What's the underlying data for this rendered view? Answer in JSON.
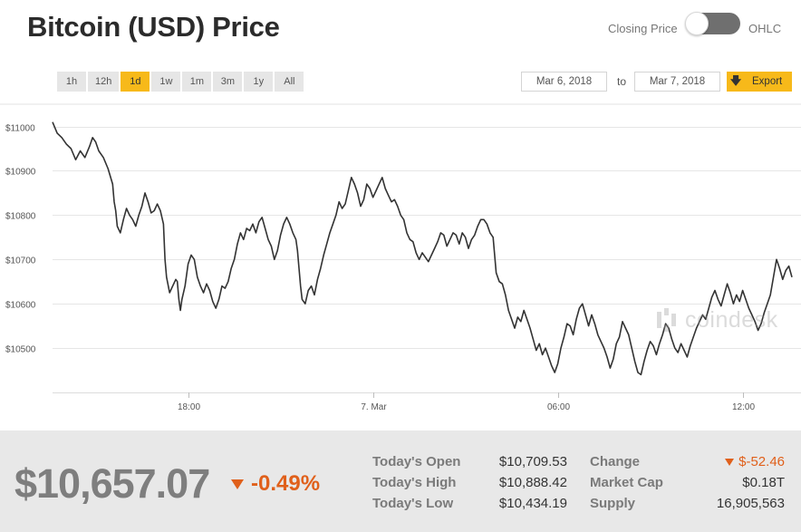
{
  "header": {
    "title": "Bitcoin (USD) Price",
    "toggle_left": "Closing Price",
    "toggle_right": "OHLC"
  },
  "controls": {
    "ranges": [
      "1h",
      "12h",
      "1d",
      "1w",
      "1m",
      "3m",
      "1y",
      "All"
    ],
    "active_range": "1d",
    "date_from": "Mar 6, 2018",
    "date_separator": "to",
    "date_to": "Mar 7, 2018",
    "export_label": "Export",
    "accent_color": "#f7b91a"
  },
  "watermark": "coindesk",
  "summary": {
    "price": "$10,657.07",
    "change_pct": "-0.49%",
    "change_color": "#e0601b",
    "stats_left": [
      {
        "label": "Today's Open",
        "value": "$10,709.53"
      },
      {
        "label": "Today's High",
        "value": "$10,888.42"
      },
      {
        "label": "Today's Low",
        "value": "$10,434.19"
      }
    ],
    "stats_right": [
      {
        "label": "Change",
        "value": "$-52.46"
      },
      {
        "label": "Market Cap",
        "value": "$0.18T"
      },
      {
        "label": "Supply",
        "value": "16,905,563"
      }
    ]
  },
  "chart_data": {
    "type": "line",
    "title": "",
    "xlabel": "",
    "ylabel": "",
    "y_ticks": [
      10500,
      10600,
      10700,
      10800,
      10900,
      11000
    ],
    "y_tick_labels": [
      "$10500",
      "$10600",
      "$10700",
      "$10800",
      "$10900",
      "$11000"
    ],
    "x_tick_labels": [
      {
        "label": "18:00",
        "hour": 4.4
      },
      {
        "label": "7. Mar",
        "hour": 10.4
      },
      {
        "label": "06:00",
        "hour": 16.4
      },
      {
        "label": "12:00",
        "hour": 22.4
      }
    ],
    "x_range": [
      0,
      24
    ],
    "ylim": [
      10400,
      11040
    ],
    "grid": true,
    "line_color": "#333333",
    "series": [
      {
        "values": [
          [
            0.0,
            11010
          ],
          [
            0.15,
            10985
          ],
          [
            0.3,
            10975
          ],
          [
            0.45,
            10960
          ],
          [
            0.6,
            10950
          ],
          [
            0.75,
            10925
          ],
          [
            0.9,
            10945
          ],
          [
            1.05,
            10930
          ],
          [
            1.2,
            10955
          ],
          [
            1.3,
            10975
          ],
          [
            1.4,
            10965
          ],
          [
            1.5,
            10945
          ],
          [
            1.65,
            10930
          ],
          [
            1.8,
            10905
          ],
          [
            1.95,
            10870
          ],
          [
            2.0,
            10830
          ],
          [
            2.05,
            10810
          ],
          [
            2.1,
            10775
          ],
          [
            2.2,
            10760
          ],
          [
            2.3,
            10790
          ],
          [
            2.4,
            10815
          ],
          [
            2.5,
            10800
          ],
          [
            2.6,
            10790
          ],
          [
            2.7,
            10775
          ],
          [
            2.8,
            10800
          ],
          [
            2.9,
            10820
          ],
          [
            3.0,
            10850
          ],
          [
            3.1,
            10830
          ],
          [
            3.2,
            10805
          ],
          [
            3.3,
            10810
          ],
          [
            3.4,
            10825
          ],
          [
            3.5,
            10810
          ],
          [
            3.6,
            10780
          ],
          [
            3.65,
            10700
          ],
          [
            3.7,
            10660
          ],
          [
            3.8,
            10625
          ],
          [
            3.9,
            10640
          ],
          [
            4.0,
            10655
          ],
          [
            4.05,
            10650
          ],
          [
            4.1,
            10610
          ],
          [
            4.15,
            10585
          ],
          [
            4.2,
            10610
          ],
          [
            4.3,
            10640
          ],
          [
            4.4,
            10690
          ],
          [
            4.5,
            10710
          ],
          [
            4.6,
            10700
          ],
          [
            4.7,
            10660
          ],
          [
            4.8,
            10640
          ],
          [
            4.9,
            10625
          ],
          [
            5.0,
            10645
          ],
          [
            5.1,
            10630
          ],
          [
            5.2,
            10605
          ],
          [
            5.3,
            10590
          ],
          [
            5.4,
            10610
          ],
          [
            5.5,
            10640
          ],
          [
            5.6,
            10635
          ],
          [
            5.7,
            10650
          ],
          [
            5.8,
            10680
          ],
          [
            5.9,
            10700
          ],
          [
            6.0,
            10735
          ],
          [
            6.1,
            10760
          ],
          [
            6.2,
            10745
          ],
          [
            6.3,
            10770
          ],
          [
            6.4,
            10765
          ],
          [
            6.5,
            10780
          ],
          [
            6.6,
            10760
          ],
          [
            6.7,
            10785
          ],
          [
            6.8,
            10795
          ],
          [
            6.9,
            10770
          ],
          [
            7.0,
            10745
          ],
          [
            7.1,
            10730
          ],
          [
            7.2,
            10700
          ],
          [
            7.3,
            10720
          ],
          [
            7.4,
            10755
          ],
          [
            7.5,
            10780
          ],
          [
            7.6,
            10795
          ],
          [
            7.7,
            10780
          ],
          [
            7.8,
            10760
          ],
          [
            7.9,
            10745
          ],
          [
            7.95,
            10720
          ],
          [
            8.0,
            10680
          ],
          [
            8.05,
            10640
          ],
          [
            8.1,
            10610
          ],
          [
            8.2,
            10600
          ],
          [
            8.3,
            10630
          ],
          [
            8.4,
            10640
          ],
          [
            8.5,
            10620
          ],
          [
            8.6,
            10655
          ],
          [
            8.7,
            10680
          ],
          [
            8.8,
            10710
          ],
          [
            8.9,
            10735
          ],
          [
            9.0,
            10760
          ],
          [
            9.1,
            10780
          ],
          [
            9.2,
            10800
          ],
          [
            9.3,
            10830
          ],
          [
            9.4,
            10815
          ],
          [
            9.5,
            10825
          ],
          [
            9.6,
            10855
          ],
          [
            9.7,
            10885
          ],
          [
            9.8,
            10870
          ],
          [
            9.9,
            10850
          ],
          [
            10.0,
            10820
          ],
          [
            10.1,
            10835
          ],
          [
            10.2,
            10870
          ],
          [
            10.3,
            10860
          ],
          [
            10.4,
            10840
          ],
          [
            10.5,
            10855
          ],
          [
            10.6,
            10870
          ],
          [
            10.7,
            10885
          ],
          [
            10.8,
            10860
          ],
          [
            10.9,
            10845
          ],
          [
            11.0,
            10830
          ],
          [
            11.1,
            10835
          ],
          [
            11.2,
            10820
          ],
          [
            11.3,
            10800
          ],
          [
            11.4,
            10790
          ],
          [
            11.5,
            10760
          ],
          [
            11.6,
            10745
          ],
          [
            11.7,
            10740
          ],
          [
            11.8,
            10715
          ],
          [
            11.9,
            10700
          ],
          [
            12.0,
            10715
          ],
          [
            12.1,
            10705
          ],
          [
            12.2,
            10695
          ],
          [
            12.3,
            10710
          ],
          [
            12.4,
            10725
          ],
          [
            12.5,
            10740
          ],
          [
            12.6,
            10760
          ],
          [
            12.7,
            10755
          ],
          [
            12.8,
            10730
          ],
          [
            12.9,
            10745
          ],
          [
            13.0,
            10760
          ],
          [
            13.1,
            10755
          ],
          [
            13.2,
            10735
          ],
          [
            13.3,
            10760
          ],
          [
            13.4,
            10750
          ],
          [
            13.5,
            10725
          ],
          [
            13.6,
            10745
          ],
          [
            13.7,
            10755
          ],
          [
            13.8,
            10775
          ],
          [
            13.9,
            10790
          ],
          [
            14.0,
            10790
          ],
          [
            14.1,
            10780
          ],
          [
            14.2,
            10760
          ],
          [
            14.3,
            10750
          ],
          [
            14.35,
            10710
          ],
          [
            14.4,
            10670
          ],
          [
            14.5,
            10650
          ],
          [
            14.6,
            10645
          ],
          [
            14.7,
            10620
          ],
          [
            14.8,
            10585
          ],
          [
            14.9,
            10565
          ],
          [
            15.0,
            10545
          ],
          [
            15.1,
            10570
          ],
          [
            15.2,
            10560
          ],
          [
            15.3,
            10585
          ],
          [
            15.4,
            10565
          ],
          [
            15.5,
            10545
          ],
          [
            15.6,
            10520
          ],
          [
            15.7,
            10495
          ],
          [
            15.8,
            10510
          ],
          [
            15.9,
            10485
          ],
          [
            16.0,
            10500
          ],
          [
            16.1,
            10480
          ],
          [
            16.2,
            10460
          ],
          [
            16.3,
            10445
          ],
          [
            16.4,
            10465
          ],
          [
            16.5,
            10500
          ],
          [
            16.6,
            10525
          ],
          [
            16.7,
            10555
          ],
          [
            16.8,
            10550
          ],
          [
            16.9,
            10530
          ],
          [
            17.0,
            10565
          ],
          [
            17.1,
            10590
          ],
          [
            17.2,
            10600
          ],
          [
            17.3,
            10575
          ],
          [
            17.4,
            10550
          ],
          [
            17.5,
            10575
          ],
          [
            17.6,
            10555
          ],
          [
            17.7,
            10530
          ],
          [
            17.8,
            10515
          ],
          [
            17.9,
            10500
          ],
          [
            18.0,
            10480
          ],
          [
            18.1,
            10455
          ],
          [
            18.2,
            10475
          ],
          [
            18.3,
            10510
          ],
          [
            18.4,
            10525
          ],
          [
            18.5,
            10560
          ],
          [
            18.6,
            10545
          ],
          [
            18.7,
            10530
          ],
          [
            18.8,
            10500
          ],
          [
            18.9,
            10470
          ],
          [
            19.0,
            10445
          ],
          [
            19.1,
            10440
          ],
          [
            19.2,
            10470
          ],
          [
            19.3,
            10495
          ],
          [
            19.4,
            10515
          ],
          [
            19.5,
            10505
          ],
          [
            19.6,
            10485
          ],
          [
            19.7,
            10510
          ],
          [
            19.8,
            10530
          ],
          [
            19.9,
            10555
          ],
          [
            20.0,
            10545
          ],
          [
            20.1,
            10520
          ],
          [
            20.2,
            10500
          ],
          [
            20.3,
            10490
          ],
          [
            20.4,
            10510
          ],
          [
            20.5,
            10495
          ],
          [
            20.6,
            10480
          ],
          [
            20.7,
            10505
          ],
          [
            20.8,
            10525
          ],
          [
            20.9,
            10545
          ],
          [
            21.0,
            10560
          ],
          [
            21.1,
            10575
          ],
          [
            21.2,
            10565
          ],
          [
            21.3,
            10590
          ],
          [
            21.4,
            10615
          ],
          [
            21.5,
            10630
          ],
          [
            21.6,
            10610
          ],
          [
            21.7,
            10595
          ],
          [
            21.8,
            10620
          ],
          [
            21.9,
            10645
          ],
          [
            22.0,
            10625
          ],
          [
            22.1,
            10600
          ],
          [
            22.2,
            10620
          ],
          [
            22.3,
            10605
          ],
          [
            22.4,
            10630
          ],
          [
            22.5,
            10610
          ],
          [
            22.6,
            10590
          ],
          [
            22.7,
            10575
          ],
          [
            22.8,
            10560
          ],
          [
            22.9,
            10540
          ],
          [
            23.0,
            10555
          ],
          [
            23.1,
            10580
          ],
          [
            23.2,
            10600
          ],
          [
            23.3,
            10620
          ],
          [
            23.4,
            10660
          ],
          [
            23.5,
            10700
          ],
          [
            23.6,
            10680
          ],
          [
            23.7,
            10655
          ],
          [
            23.8,
            10675
          ],
          [
            23.9,
            10685
          ],
          [
            24.0,
            10660
          ]
        ]
      }
    ]
  }
}
